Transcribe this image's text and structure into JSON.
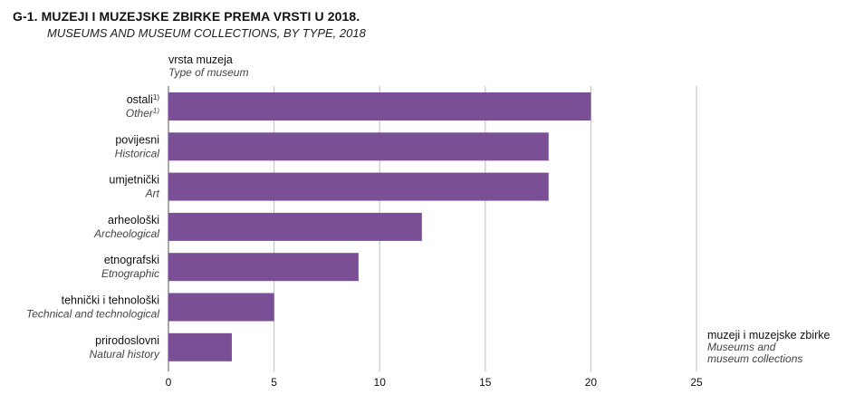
{
  "title": "G-1. MUZEJI I MUZEJSKE ZBIRKE PREMA VRSTI U 2018.",
  "subtitle": "MUSEUMS AND MUSEUM COLLECTIONS, BY TYPE, 2018",
  "chart_data": {
    "type": "bar",
    "orientation": "horizontal",
    "ylabel": "vrsta muzeja",
    "ylabel_en": "Type of museum",
    "xlabel_lines": [
      "muzeji i muzejske zbirke",
      "Museums and",
      "museum collections"
    ],
    "categories": [
      {
        "hr": "ostali",
        "hr_sup": "1)",
        "en": "Other",
        "en_sup": "1)"
      },
      {
        "hr": "povijesni",
        "en": "Historical"
      },
      {
        "hr": "umjetnički",
        "en": "Art"
      },
      {
        "hr": "arheološki",
        "en": "Archeological"
      },
      {
        "hr": "etnografski",
        "en": "Etnographic"
      },
      {
        "hr": "tehnički i tehnološki",
        "en": "Technical and technological"
      },
      {
        "hr": "prirodoslovni",
        "en": "Natural history"
      }
    ],
    "values": [
      20,
      18,
      18,
      12,
      9,
      5,
      3
    ],
    "xlim": [
      0,
      25
    ],
    "xticks": [
      0,
      5,
      10,
      15,
      20,
      25
    ],
    "grid": true,
    "bar_color": "#7b4f96",
    "grid_color": "#bdbdbd"
  }
}
